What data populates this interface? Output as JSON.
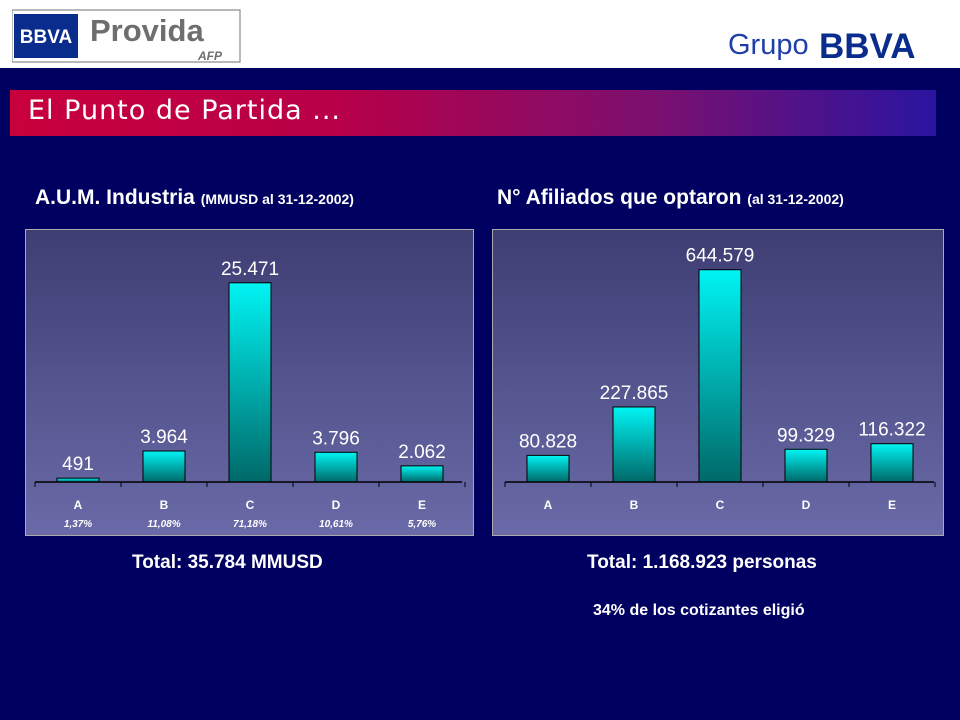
{
  "header": {
    "logo_left_badge": "BBVA",
    "logo_brand": "Provida",
    "logo_sub": "AFP",
    "group_text": "Grupo",
    "group_logo": "BBVA"
  },
  "banner": {
    "title": "El Punto de Partida ..."
  },
  "colors": {
    "background": "#000060",
    "bar_top": "#00f4f4",
    "bar_bottom": "#006868",
    "plot_top": "#3e3e74",
    "plot_bottom": "#6a6aa8"
  },
  "charts": [
    {
      "title": "A.U.M. Industria ",
      "subtitle": "(MMUSD al 31-12-2002)",
      "total": "Total: 35.784 MMUSD"
    },
    {
      "title": "N° Afiliados que optaron ",
      "subtitle": "(al 31-12-2002)",
      "total": "Total: 1.168.923 personas",
      "note": "34% de los cotizantes eligió"
    }
  ],
  "chart_data": [
    {
      "type": "bar",
      "categories": [
        "A",
        "B",
        "C",
        "D",
        "E"
      ],
      "values": [
        491,
        3964,
        25471,
        3796,
        2062
      ],
      "value_labels": [
        "491",
        "3.964",
        "25.471",
        "3.796",
        "2.062"
      ],
      "percent_labels": [
        "1,37%",
        "11,08%",
        "71,18%",
        "10,61%",
        "5,76%"
      ],
      "ylim": [
        0,
        28000
      ]
    },
    {
      "type": "bar",
      "categories": [
        "A",
        "B",
        "C",
        "D",
        "E"
      ],
      "values": [
        80828,
        227865,
        644579,
        99329,
        116322
      ],
      "value_labels": [
        "80.828",
        "227.865",
        "644.579",
        "99.329",
        "116.322"
      ],
      "ylim": [
        0,
        665000
      ]
    }
  ]
}
